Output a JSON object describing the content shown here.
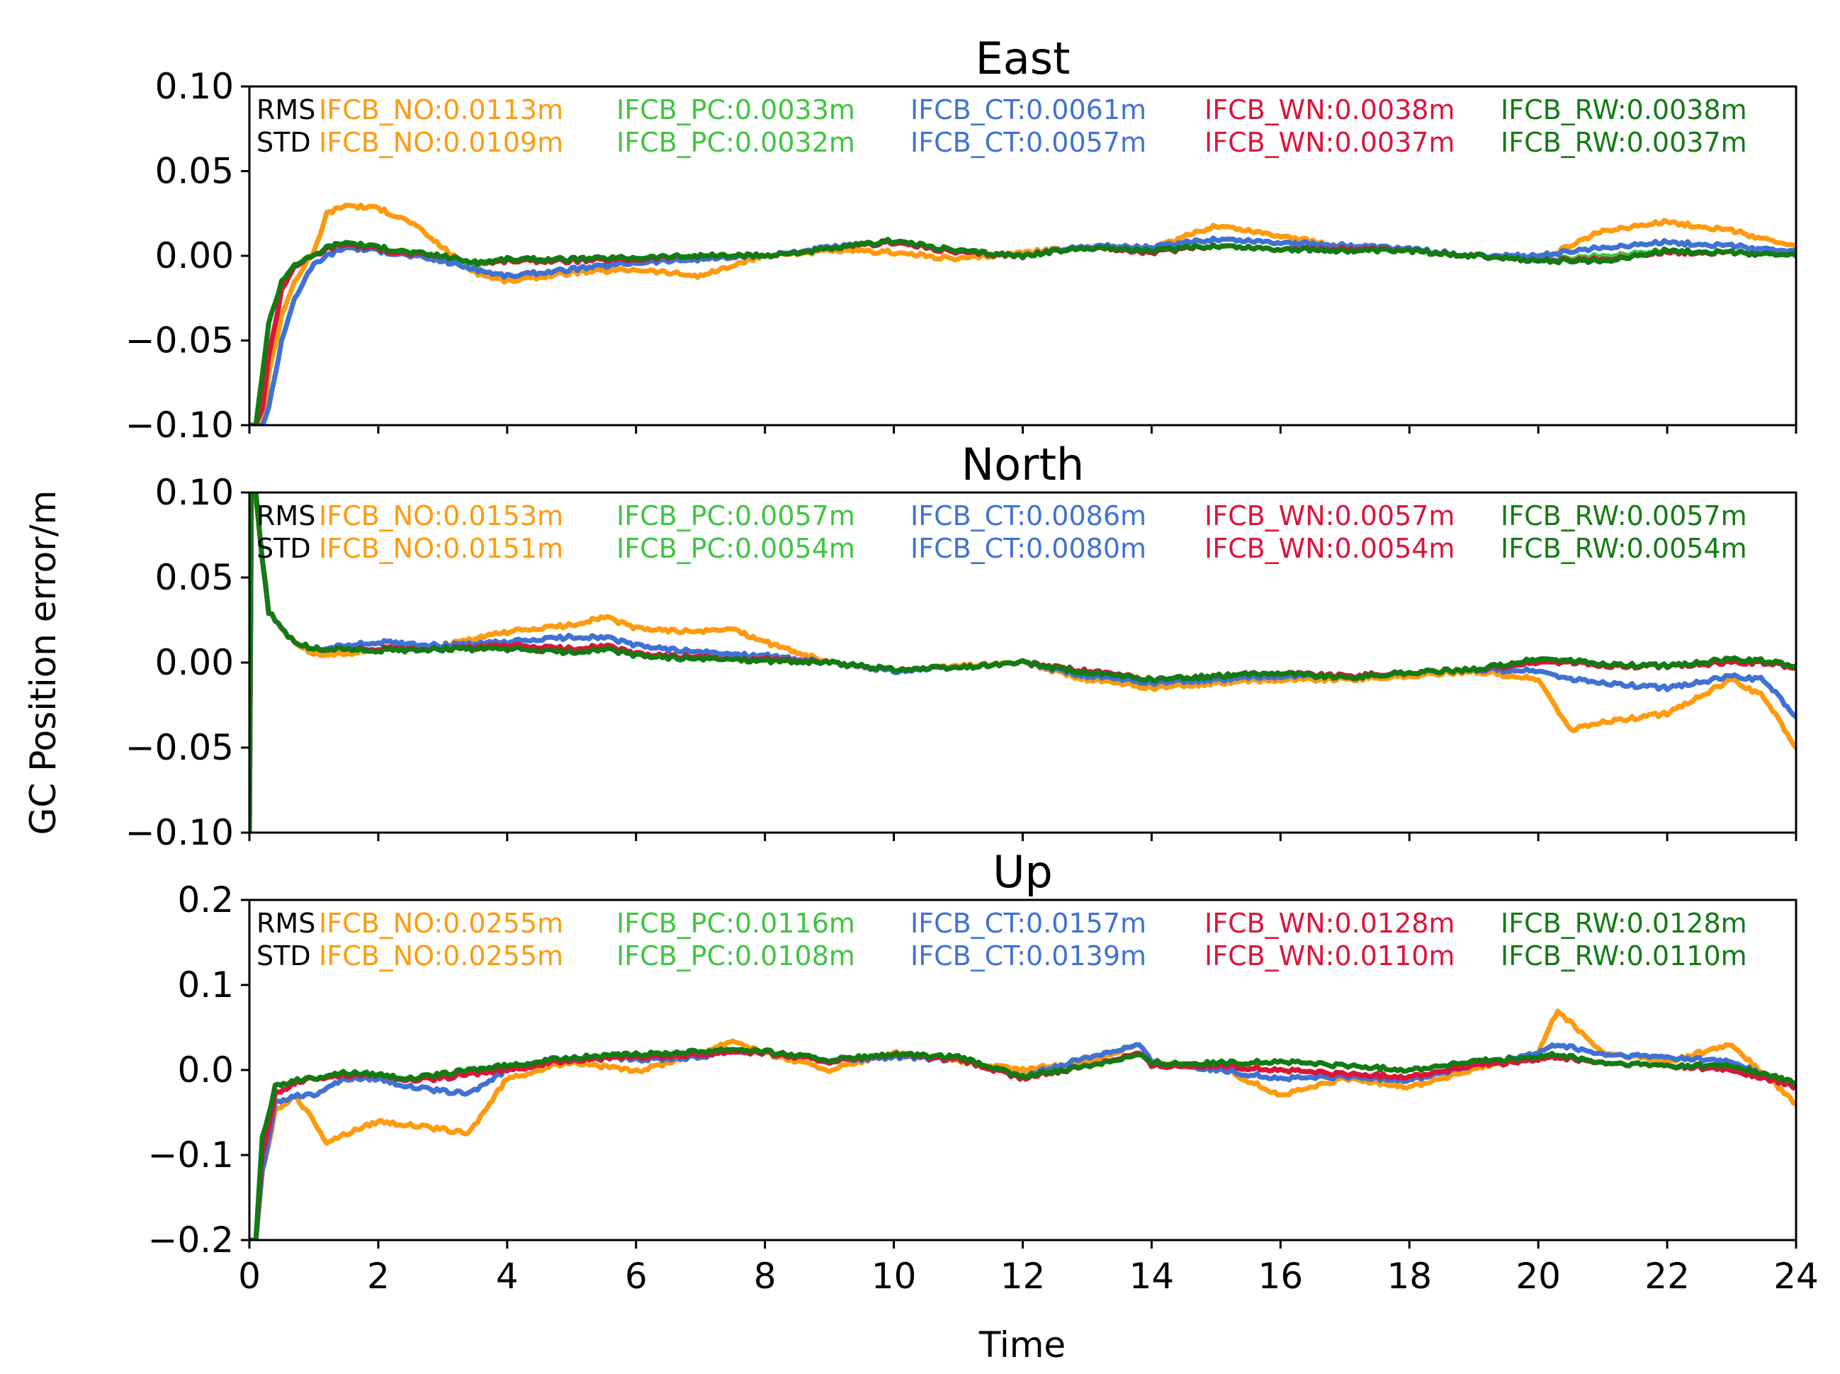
{
  "figure": {
    "ylabel": "GC Position error/m",
    "xlabel": "Time"
  },
  "colors": {
    "IFCB_NO": "#ff9a0e",
    "IFCB_PC": "#3ec63e",
    "IFCB_CT": "#3f72d4",
    "IFCB_WN": "#dc143c",
    "IFCB_RW": "#137b13",
    "label": "#000000"
  },
  "chart_data": [
    {
      "type": "line",
      "title": "East",
      "xlabel": "",
      "ylabel": "GC Position error/m",
      "xlim": [
        0,
        24
      ],
      "ylim": [
        -0.1,
        0.1
      ],
      "xticks": [
        0,
        2,
        4,
        6,
        8,
        10,
        12,
        14,
        16,
        18,
        20,
        22,
        24
      ],
      "yticks": [
        "0.10",
        "0.05",
        "0.00",
        "−0.05",
        "−0.10"
      ],
      "ytick_values": [
        0.1,
        0.05,
        0.0,
        -0.05,
        -0.1
      ],
      "stats": [
        {
          "label": "RMS",
          "entries": [
            {
              "series": "IFCB_NO",
              "text": "IFCB_NO:0.0113m"
            },
            {
              "series": "IFCB_PC",
              "text": "IFCB_PC:0.0033m"
            },
            {
              "series": "IFCB_CT",
              "text": "IFCB_CT:0.0061m"
            },
            {
              "series": "IFCB_WN",
              "text": "IFCB_WN:0.0038m"
            },
            {
              "series": "IFCB_RW",
              "text": "IFCB_RW:0.0038m"
            }
          ]
        },
        {
          "label": "STD",
          "entries": [
            {
              "series": "IFCB_NO",
              "text": "IFCB_NO:0.0109m"
            },
            {
              "series": "IFCB_PC",
              "text": "IFCB_PC:0.0032m"
            },
            {
              "series": "IFCB_CT",
              "text": "IFCB_CT:0.0057m"
            },
            {
              "series": "IFCB_WN",
              "text": "IFCB_WN:0.0037m"
            },
            {
              "series": "IFCB_RW",
              "text": "IFCB_RW:0.0037m"
            }
          ]
        }
      ],
      "x": [
        0,
        0.1,
        0.2,
        0.3,
        0.5,
        0.7,
        1,
        1.2,
        1.5,
        2,
        2.5,
        3,
        3.5,
        4,
        5,
        6,
        7,
        8,
        9,
        10,
        11,
        12,
        13,
        14,
        15,
        16,
        17,
        18,
        19,
        20,
        21,
        22,
        23,
        24
      ],
      "series": [
        {
          "name": "IFCB_NO",
          "values": [
            -0.1,
            -0.1,
            -0.1,
            -0.07,
            -0.035,
            -0.015,
            0.002,
            0.025,
            0.03,
            0.028,
            0.02,
            0.005,
            -0.01,
            -0.015,
            -0.01,
            -0.008,
            -0.012,
            0.0,
            0.003,
            0.002,
            -0.002,
            0.002,
            0.005,
            0.004,
            0.018,
            0.012,
            0.005,
            0.003,
            0.0,
            -0.003,
            0.015,
            0.02,
            0.015,
            0.005
          ]
        },
        {
          "name": "IFCB_PC",
          "values": [
            -0.1,
            -0.1,
            -0.09,
            -0.06,
            -0.02,
            -0.005,
            0.0,
            0.005,
            0.008,
            0.005,
            0.002,
            0.0,
            -0.005,
            -0.003,
            -0.003,
            -0.002,
            0.0,
            0.0,
            0.004,
            0.008,
            0.002,
            0.0,
            0.005,
            0.002,
            0.006,
            0.004,
            0.004,
            0.003,
            0.0,
            -0.003,
            0.0,
            0.003,
            0.002,
            0.0
          ]
        },
        {
          "name": "IFCB_CT",
          "values": [
            -0.1,
            -0.1,
            -0.1,
            -0.09,
            -0.05,
            -0.025,
            -0.005,
            0.0,
            0.005,
            0.003,
            0.0,
            -0.003,
            -0.008,
            -0.012,
            -0.008,
            -0.004,
            -0.002,
            0.0,
            0.005,
            0.008,
            0.002,
            0.0,
            0.006,
            0.005,
            0.01,
            0.008,
            0.006,
            0.004,
            0.0,
            0.0,
            0.005,
            0.008,
            0.006,
            0.002
          ]
        },
        {
          "name": "IFCB_WN",
          "values": [
            -0.1,
            -0.1,
            -0.09,
            -0.06,
            -0.02,
            -0.006,
            0.0,
            0.004,
            0.007,
            0.004,
            0.001,
            0.0,
            -0.004,
            -0.003,
            -0.003,
            -0.002,
            0.0,
            0.0,
            0.004,
            0.008,
            0.002,
            0.0,
            0.005,
            0.002,
            0.006,
            0.004,
            0.004,
            0.003,
            0.0,
            -0.003,
            -0.002,
            0.002,
            0.002,
            0.0
          ]
        },
        {
          "name": "IFCB_RW",
          "values": [
            -0.1,
            -0.1,
            -0.07,
            -0.04,
            -0.015,
            -0.005,
            0.0,
            0.005,
            0.008,
            0.005,
            0.002,
            0.0,
            -0.004,
            -0.002,
            -0.002,
            -0.001,
            0.0,
            0.0,
            0.004,
            0.009,
            0.003,
            0.0,
            0.005,
            0.003,
            0.006,
            0.004,
            0.003,
            0.003,
            0.0,
            -0.003,
            -0.003,
            0.003,
            0.002,
            0.0
          ]
        }
      ]
    },
    {
      "type": "line",
      "title": "North",
      "xlabel": "",
      "ylabel": "GC Position error/m",
      "xlim": [
        0,
        24
      ],
      "ylim": [
        -0.1,
        0.1
      ],
      "xticks": [
        0,
        2,
        4,
        6,
        8,
        10,
        12,
        14,
        16,
        18,
        20,
        22,
        24
      ],
      "yticks": [
        "0.10",
        "0.05",
        "0.00",
        "−0.05",
        "−0.10"
      ],
      "ytick_values": [
        0.1,
        0.05,
        0.0,
        -0.05,
        -0.1
      ],
      "stats": [
        {
          "label": "RMS",
          "entries": [
            {
              "series": "IFCB_NO",
              "text": "IFCB_NO:0.0153m"
            },
            {
              "series": "IFCB_PC",
              "text": "IFCB_PC:0.0057m"
            },
            {
              "series": "IFCB_CT",
              "text": "IFCB_CT:0.0086m"
            },
            {
              "series": "IFCB_WN",
              "text": "IFCB_WN:0.0057m"
            },
            {
              "series": "IFCB_RW",
              "text": "IFCB_RW:0.0057m"
            }
          ]
        },
        {
          "label": "STD",
          "entries": [
            {
              "series": "IFCB_NO",
              "text": "IFCB_NO:0.0151m"
            },
            {
              "series": "IFCB_PC",
              "text": "IFCB_PC:0.0054m"
            },
            {
              "series": "IFCB_CT",
              "text": "IFCB_CT:0.0080m"
            },
            {
              "series": "IFCB_WN",
              "text": "IFCB_WN:0.0054m"
            },
            {
              "series": "IFCB_RW",
              "text": "IFCB_RW:0.0054m"
            }
          ]
        }
      ],
      "x": [
        0,
        0.03,
        0.06,
        0.1,
        0.2,
        0.3,
        0.5,
        0.7,
        1,
        1.5,
        2,
        3,
        4,
        5,
        5.5,
        6,
        7,
        7.5,
        8,
        9,
        10,
        11,
        12,
        13,
        14,
        15,
        16,
        17,
        18,
        19,
        20,
        20.5,
        21,
        22,
        23,
        23.5,
        24
      ],
      "series": [
        {
          "name": "IFCB_NO",
          "values": [
            -0.1,
            0.1,
            0.1,
            0.1,
            0.06,
            0.03,
            0.02,
            0.012,
            0.005,
            0.005,
            0.008,
            0.01,
            0.018,
            0.022,
            0.027,
            0.02,
            0.018,
            0.02,
            0.012,
            0.0,
            -0.005,
            -0.002,
            0.0,
            -0.01,
            -0.015,
            -0.012,
            -0.01,
            -0.01,
            -0.008,
            -0.005,
            -0.01,
            -0.04,
            -0.035,
            -0.03,
            -0.01,
            -0.02,
            -0.05
          ]
        },
        {
          "name": "IFCB_PC",
          "values": [
            -0.1,
            0.1,
            0.1,
            0.1,
            0.06,
            0.03,
            0.02,
            0.012,
            0.008,
            0.008,
            0.008,
            0.008,
            0.01,
            0.008,
            0.01,
            0.005,
            0.003,
            0.002,
            0.002,
            0.0,
            -0.004,
            -0.003,
            0.0,
            -0.005,
            -0.01,
            -0.008,
            -0.006,
            -0.008,
            -0.006,
            -0.004,
            0.0,
            0.0,
            -0.002,
            -0.002,
            0.0,
            0.0,
            -0.003
          ]
        },
        {
          "name": "IFCB_CT",
          "values": [
            -0.1,
            0.1,
            0.1,
            0.1,
            0.06,
            0.03,
            0.02,
            0.012,
            0.008,
            0.01,
            0.012,
            0.01,
            0.012,
            0.015,
            0.015,
            0.01,
            0.006,
            0.005,
            0.004,
            0.0,
            -0.005,
            -0.003,
            0.0,
            -0.008,
            -0.012,
            -0.01,
            -0.008,
            -0.008,
            -0.006,
            -0.004,
            -0.005,
            -0.01,
            -0.012,
            -0.015,
            -0.008,
            -0.01,
            -0.032
          ]
        },
        {
          "name": "IFCB_WN",
          "values": [
            -0.1,
            0.1,
            0.1,
            0.1,
            0.06,
            0.03,
            0.02,
            0.012,
            0.008,
            0.008,
            0.008,
            0.008,
            0.01,
            0.008,
            0.01,
            0.005,
            0.003,
            0.002,
            0.002,
            0.0,
            -0.004,
            -0.003,
            0.0,
            -0.005,
            -0.01,
            -0.008,
            -0.006,
            -0.008,
            -0.006,
            -0.004,
            0.0,
            0.0,
            -0.002,
            -0.002,
            0.0,
            0.0,
            -0.003
          ]
        },
        {
          "name": "IFCB_RW",
          "values": [
            -0.1,
            0.1,
            0.1,
            0.1,
            0.06,
            0.03,
            0.02,
            0.012,
            0.008,
            0.008,
            0.007,
            0.008,
            0.008,
            0.006,
            0.008,
            0.004,
            0.002,
            0.002,
            0.001,
            0.0,
            -0.004,
            -0.003,
            0.0,
            -0.006,
            -0.01,
            -0.008,
            -0.006,
            -0.009,
            -0.006,
            -0.004,
            0.002,
            0.001,
            -0.001,
            -0.002,
            0.002,
            0.001,
            -0.002
          ]
        }
      ]
    },
    {
      "type": "line",
      "title": "Up",
      "xlabel": "Time",
      "ylabel": "GC Position error/m",
      "xlim": [
        0,
        24
      ],
      "ylim": [
        -0.2,
        0.2
      ],
      "xticks": [
        0,
        2,
        4,
        6,
        8,
        10,
        12,
        14,
        16,
        18,
        20,
        22,
        24
      ],
      "yticks": [
        "0.2",
        "0.1",
        "0.0",
        "−0.1",
        "−0.2"
      ],
      "ytick_values": [
        0.2,
        0.1,
        0.0,
        -0.1,
        -0.2
      ],
      "stats": [
        {
          "label": "RMS",
          "entries": [
            {
              "series": "IFCB_NO",
              "text": "IFCB_NO:0.0255m"
            },
            {
              "series": "IFCB_PC",
              "text": "IFCB_PC:0.0116m"
            },
            {
              "series": "IFCB_CT",
              "text": "IFCB_CT:0.0157m"
            },
            {
              "series": "IFCB_WN",
              "text": "IFCB_WN:0.0128m"
            },
            {
              "series": "IFCB_RW",
              "text": "IFCB_RW:0.0128m"
            }
          ]
        },
        {
          "label": "STD",
          "entries": [
            {
              "series": "IFCB_NO",
              "text": "IFCB_NO:0.0255m"
            },
            {
              "series": "IFCB_PC",
              "text": "IFCB_PC:0.0108m"
            },
            {
              "series": "IFCB_CT",
              "text": "IFCB_CT:0.0139m"
            },
            {
              "series": "IFCB_WN",
              "text": "IFCB_WN:0.0110m"
            },
            {
              "series": "IFCB_RW",
              "text": "IFCB_RW:0.0110m"
            }
          ]
        }
      ],
      "x": [
        0,
        0.1,
        0.2,
        0.4,
        0.7,
        1,
        1.2,
        1.5,
        2,
        2.5,
        3,
        3.4,
        4,
        5,
        6,
        7,
        7.5,
        8,
        9,
        10,
        11,
        12,
        13,
        13.8,
        14,
        15,
        16,
        17,
        18,
        19,
        20,
        20.3,
        21,
        22,
        23,
        24
      ],
      "series": [
        {
          "name": "IFCB_NO",
          "values": [
            -0.2,
            -0.2,
            -0.12,
            -0.05,
            -0.03,
            -0.06,
            -0.085,
            -0.075,
            -0.06,
            -0.065,
            -0.07,
            -0.075,
            -0.01,
            0.01,
            -0.002,
            0.02,
            0.035,
            0.02,
            0.0,
            0.02,
            0.01,
            0.0,
            0.01,
            0.03,
            0.01,
            0.005,
            -0.03,
            -0.01,
            -0.02,
            0.0,
            0.02,
            0.07,
            0.02,
            0.01,
            0.03,
            -0.04
          ]
        },
        {
          "name": "IFCB_PC",
          "values": [
            -0.2,
            -0.2,
            -0.1,
            -0.03,
            -0.015,
            -0.01,
            -0.008,
            -0.005,
            -0.005,
            -0.012,
            -0.01,
            -0.005,
            0.0,
            0.012,
            0.015,
            0.018,
            0.022,
            0.02,
            0.01,
            0.018,
            0.012,
            -0.01,
            0.005,
            0.02,
            0.005,
            0.005,
            0.0,
            -0.005,
            -0.008,
            0.005,
            0.012,
            0.015,
            0.008,
            0.005,
            0.0,
            -0.02
          ]
        },
        {
          "name": "IFCB_CT",
          "values": [
            -0.2,
            -0.2,
            -0.12,
            -0.04,
            -0.03,
            -0.03,
            -0.02,
            -0.01,
            -0.01,
            -0.02,
            -0.025,
            -0.028,
            0.0,
            0.015,
            0.012,
            0.015,
            0.025,
            0.02,
            0.01,
            0.015,
            0.012,
            -0.008,
            0.015,
            0.03,
            0.01,
            0.0,
            -0.01,
            -0.008,
            -0.012,
            0.005,
            0.02,
            0.03,
            0.018,
            0.015,
            0.01,
            -0.02
          ]
        },
        {
          "name": "IFCB_WN",
          "values": [
            -0.2,
            -0.2,
            -0.1,
            -0.03,
            -0.015,
            -0.01,
            -0.008,
            -0.006,
            -0.005,
            -0.012,
            -0.01,
            -0.005,
            0.0,
            0.012,
            0.015,
            0.018,
            0.022,
            0.02,
            0.01,
            0.018,
            0.012,
            -0.01,
            0.005,
            0.02,
            0.005,
            0.005,
            0.0,
            -0.005,
            -0.008,
            0.005,
            0.012,
            0.015,
            0.008,
            0.005,
            0.0,
            -0.02
          ]
        },
        {
          "name": "IFCB_RW",
          "values": [
            -0.2,
            -0.2,
            -0.08,
            -0.02,
            -0.012,
            -0.01,
            -0.006,
            -0.003,
            -0.005,
            -0.01,
            -0.005,
            0.0,
            0.005,
            0.015,
            0.018,
            0.022,
            0.025,
            0.022,
            0.012,
            0.018,
            0.015,
            -0.008,
            0.005,
            0.018,
            0.008,
            0.008,
            0.01,
            0.005,
            0.0,
            0.01,
            0.015,
            0.018,
            0.008,
            0.005,
            0.005,
            -0.015
          ]
        }
      ]
    }
  ]
}
